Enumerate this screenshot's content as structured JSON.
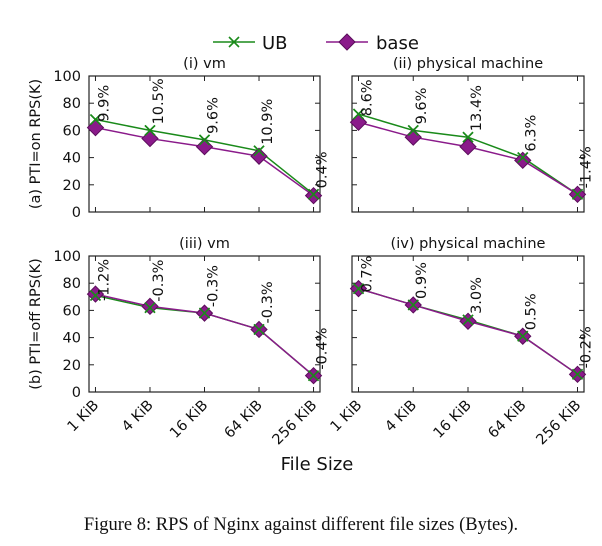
{
  "legend": {
    "items": [
      {
        "label": "UB",
        "color": "#1a8a1a",
        "marker": "x"
      },
      {
        "label": "base",
        "color": "#8a1a8a",
        "marker": "diamond"
      }
    ],
    "placement": "top-center"
  },
  "x_axis_label": "File Size",
  "caption": "Figure 8: RPS of Nginx against different file sizes (Bytes).",
  "chart_data": [
    {
      "type": "line",
      "title": "(i) vm",
      "row_label": "(a) PTI=on RPS(K)",
      "categories": [
        "1 KiB",
        "4 KiB",
        "16 KiB",
        "64 KiB",
        "256 KiB"
      ],
      "yticks": [
        "0",
        "20",
        "40",
        "60",
        "80",
        "100"
      ],
      "ylim": [
        0,
        100
      ],
      "grid": false,
      "series": [
        {
          "name": "UB",
          "values": [
            68,
            60,
            53,
            45,
            13
          ]
        },
        {
          "name": "base",
          "values": [
            62,
            54,
            48,
            41,
            12
          ]
        }
      ],
      "annotations": [
        "9.9%",
        "10.5%",
        "9.6%",
        "10.9%",
        "0.4%"
      ],
      "annotation_values": [
        62,
        60,
        53,
        45,
        13
      ]
    },
    {
      "type": "line",
      "title": "(ii) physical machine",
      "row_label": "",
      "categories": [
        "1 KiB",
        "4 KiB",
        "16 KiB",
        "64 KiB",
        "256 KiB"
      ],
      "yticks": [],
      "ylim": [
        0,
        100
      ],
      "grid": false,
      "series": [
        {
          "name": "UB",
          "values": [
            72,
            60,
            55,
            40,
            13
          ]
        },
        {
          "name": "base",
          "values": [
            66,
            55,
            48,
            38,
            13
          ]
        }
      ],
      "annotations": [
        "8.6%",
        "9.6%",
        "13.4%",
        "6.3%",
        "-1.4%"
      ],
      "annotation_values": [
        66,
        60,
        55,
        40,
        13
      ]
    },
    {
      "type": "line",
      "title": "(iii) vm",
      "row_label": "(b) PTI=off RPS(K)",
      "categories": [
        "1 KiB",
        "4 KiB",
        "16 KiB",
        "64 KiB",
        "256 KiB"
      ],
      "yticks": [
        "0",
        "20",
        "40",
        "60",
        "80",
        "100"
      ],
      "ylim": [
        0,
        100
      ],
      "grid": false,
      "series": [
        {
          "name": "UB",
          "values": [
            71,
            62,
            58,
            46,
            12
          ]
        },
        {
          "name": "base",
          "values": [
            72,
            63,
            58,
            46,
            12
          ]
        }
      ],
      "annotations": [
        "-1.2%",
        "-0.3%",
        "-0.3%",
        "-0.3%",
        "-0.4%"
      ],
      "annotation_values": [
        71,
        62,
        58,
        46,
        12
      ]
    },
    {
      "type": "line",
      "title": "(iv) physical machine",
      "row_label": "",
      "categories": [
        "1 KiB",
        "4 KiB",
        "16 KiB",
        "64 KiB",
        "256 KiB"
      ],
      "yticks": [],
      "ylim": [
        0,
        100
      ],
      "grid": false,
      "series": [
        {
          "name": "UB",
          "values": [
            76,
            64,
            53,
            41,
            13
          ]
        },
        {
          "name": "base",
          "values": [
            76,
            64,
            52,
            41,
            13
          ]
        }
      ],
      "annotations": [
        "0.7%",
        "0.9%",
        "3.0%",
        "0.5%",
        "-0.2%"
      ],
      "annotation_values": [
        76,
        64,
        53,
        41,
        13
      ]
    }
  ]
}
